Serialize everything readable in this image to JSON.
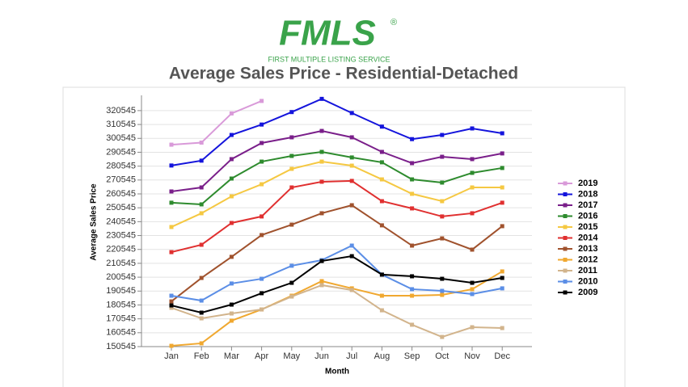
{
  "logo": {
    "mark": "FMLS",
    "registered": "®",
    "tagline": "FIRST MULTIPLE LISTING SERVICE"
  },
  "chart_data": {
    "type": "line",
    "title": "Average Sales Price - Residential-Detached",
    "x_label": "Month",
    "y_label": "Average Sales Price",
    "categories": [
      "Jan",
      "Feb",
      "Mar",
      "Apr",
      "May",
      "Jun",
      "Jul",
      "Aug",
      "Sep",
      "Oct",
      "Nov",
      "Dec"
    ],
    "ylim": [
      150545,
      331545
    ],
    "yticks": [
      150545,
      160545,
      170545,
      180545,
      190545,
      200545,
      210545,
      220545,
      230545,
      240545,
      250545,
      260545,
      270545,
      280545,
      290545,
      300545,
      310545,
      320545
    ],
    "grid": true,
    "legend": "right",
    "series": [
      {
        "name": "2019",
        "color": "#d99ad9",
        "values": [
          296000,
          297500,
          318500,
          327500,
          null,
          null,
          null,
          null,
          null,
          null,
          null,
          null
        ]
      },
      {
        "name": "2018",
        "color": "#1414dc",
        "values": [
          281000,
          284500,
          303000,
          310500,
          319500,
          329000,
          318800,
          309000,
          300000,
          303000,
          307700,
          304200
        ]
      },
      {
        "name": "2017",
        "color": "#7a1f8a",
        "values": [
          262300,
          265200,
          285600,
          297200,
          301300,
          305900,
          301300,
          290800,
          282700,
          287300,
          285600,
          289700
        ]
      },
      {
        "name": "2016",
        "color": "#2e8b2e",
        "values": [
          254200,
          253000,
          271600,
          283800,
          287900,
          290800,
          286800,
          283300,
          271000,
          268700,
          275700,
          279200
        ]
      },
      {
        "name": "2015",
        "color": "#f5c842",
        "values": [
          236700,
          246600,
          258800,
          267500,
          278600,
          283800,
          280900,
          271000,
          260600,
          255300,
          265200,
          265200
        ]
      },
      {
        "name": "2014",
        "color": "#e03030",
        "values": [
          218600,
          223900,
          239600,
          244300,
          265200,
          269300,
          269900,
          255300,
          250100,
          244300,
          246600,
          254200
        ]
      },
      {
        "name": "2013",
        "color": "#a0522d",
        "values": [
          183100,
          200000,
          215200,
          230900,
          238400,
          246600,
          252400,
          237900,
          223300,
          228500,
          220400,
          237300
        ]
      },
      {
        "name": "2012",
        "color": "#f0a830",
        "values": [
          151100,
          152900,
          169200,
          177300,
          187200,
          197700,
          192500,
          187200,
          187200,
          187800,
          191900,
          204700
        ]
      },
      {
        "name": "2011",
        "color": "#d2b48c",
        "values": [
          178500,
          170900,
          174400,
          177300,
          186600,
          194800,
          191300,
          176700,
          166300,
          157500,
          164500,
          163900
        ]
      },
      {
        "name": "2010",
        "color": "#5b8ee6",
        "values": [
          187200,
          183700,
          196000,
          199400,
          208800,
          212800,
          223300,
          202400,
          191900,
          190700,
          188400,
          192500
        ]
      },
      {
        "name": "2009",
        "color": "#000000",
        "values": [
          180200,
          175000,
          180800,
          189000,
          196500,
          212200,
          215700,
          202400,
          201200,
          199400,
          196500,
          200000
        ]
      }
    ]
  }
}
